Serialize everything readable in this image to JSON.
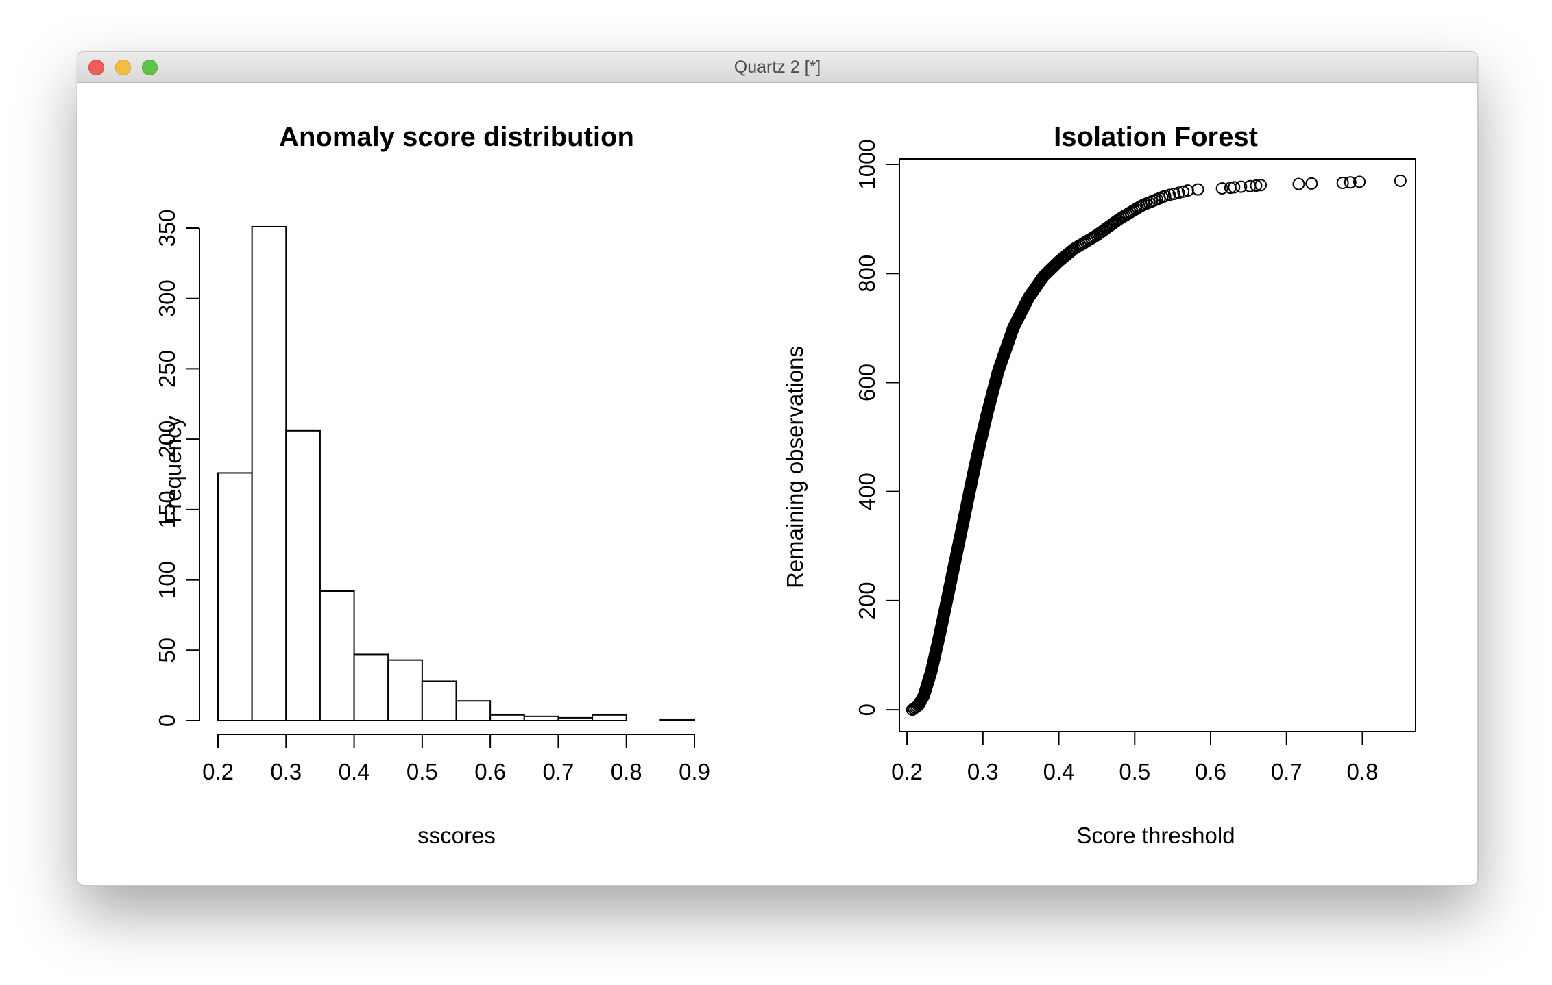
{
  "window": {
    "title": "Quartz 2 [*]"
  },
  "chart_data": [
    {
      "type": "bar",
      "title": "Anomaly score distribution",
      "xlabel": "sscores",
      "ylabel": "Frequency",
      "bin_edges": [
        0.2,
        0.25,
        0.3,
        0.35,
        0.4,
        0.45,
        0.5,
        0.55,
        0.6,
        0.65,
        0.7,
        0.75,
        0.8,
        0.85,
        0.9
      ],
      "values": [
        176,
        351,
        206,
        92,
        47,
        43,
        28,
        14,
        4,
        3,
        2,
        4,
        0,
        1
      ],
      "xlim": [
        0.2,
        0.9
      ],
      "ylim": [
        0,
        350
      ],
      "x_ticks": [
        "0.2",
        "0.3",
        "0.4",
        "0.5",
        "0.6",
        "0.7",
        "0.8",
        "0.9"
      ],
      "y_ticks": [
        "0",
        "50",
        "100",
        "150",
        "200",
        "250",
        "300",
        "350"
      ],
      "grid": false,
      "box": false
    },
    {
      "type": "scatter",
      "title": "Isolation Forest",
      "xlabel": "Score threshold",
      "ylabel": "Remaining observations",
      "curve_knots": {
        "x": [
          0.207,
          0.215,
          0.222,
          0.232,
          0.245,
          0.26,
          0.275,
          0.29,
          0.305,
          0.32,
          0.34,
          0.36,
          0.38,
          0.4,
          0.42,
          0.45,
          0.48,
          0.51,
          0.54,
          0.57,
          0.59
        ],
        "y": [
          0,
          8,
          25,
          70,
          150,
          250,
          350,
          450,
          540,
          620,
          700,
          755,
          795,
          822,
          845,
          870,
          900,
          925,
          942,
          952,
          955
        ]
      },
      "sparse_points": {
        "x": [
          0.615,
          0.626,
          0.631,
          0.64,
          0.652,
          0.66,
          0.666,
          0.716,
          0.733,
          0.774,
          0.784,
          0.796,
          0.85
        ],
        "y": [
          956,
          957,
          958,
          959,
          960,
          961,
          962,
          964,
          965,
          966,
          967,
          968,
          970
        ]
      },
      "xlim": [
        0.19,
        0.87
      ],
      "ylim": [
        -40,
        1010
      ],
      "x_ticks": [
        "0.2",
        "0.3",
        "0.4",
        "0.5",
        "0.6",
        "0.7",
        "0.8"
      ],
      "y_ticks": [
        "0",
        "200",
        "400",
        "600",
        "800",
        "1000"
      ],
      "grid": false,
      "box": true,
      "marker": "open-circle"
    }
  ]
}
